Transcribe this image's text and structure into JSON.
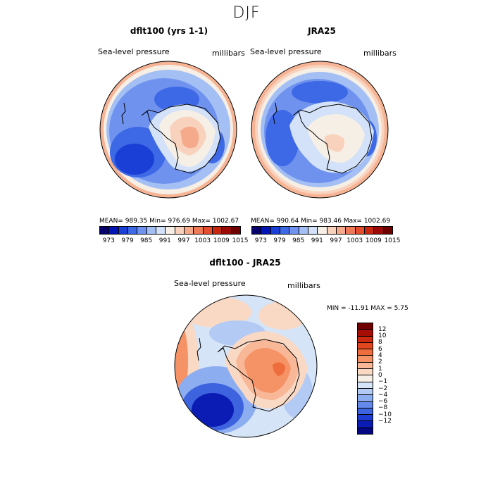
{
  "title": "DJF",
  "panels": [
    {
      "title": "dflt100 (yrs 1-1)",
      "field": "Sea-level pressure",
      "units": "millibars",
      "stats": "MEAN= 989.35   Min= 976.69   Max= 1002.67"
    },
    {
      "title": "JRA25",
      "field": "Sea-level pressure",
      "units": "millibars",
      "stats": "MEAN= 990.64   Min= 983.46   Max= 1002.69"
    },
    {
      "title": "dflt100 - JRA25",
      "field": "Sea-level pressure",
      "units": "millibars",
      "stats": "MIN = -11.91  MAX =   5.75"
    }
  ],
  "abs_colorbar": {
    "colors": [
      "#08006b",
      "#0015b3",
      "#1a3fd6",
      "#3d68e6",
      "#6f92ee",
      "#a4bff4",
      "#d3e2f8",
      "#f6efe6",
      "#f9d2bd",
      "#f5ab8b",
      "#ef7a57",
      "#e44e2c",
      "#c8260f",
      "#9c0a05",
      "#6e0000"
    ],
    "tick_labels": [
      "973",
      "979",
      "985",
      "991",
      "997",
      "1003",
      "1009",
      "1015"
    ]
  },
  "diff_colorbar": {
    "colors": [
      "#6e0000",
      "#a60d04",
      "#cc2a10",
      "#e2461f",
      "#ef6c3c",
      "#f69366",
      "#f8b797",
      "#f9d9c4",
      "#f6efe6",
      "#d6e4f8",
      "#b3cbf4",
      "#8cadf0",
      "#6489ea",
      "#3d63df",
      "#1e3dd0",
      "#0b1cb5",
      "#050780"
    ],
    "tick_labels": [
      "12",
      "10",
      "8",
      "6",
      "4",
      "2",
      "1",
      "0",
      "−1",
      "−2",
      "−4",
      "−6",
      "−8",
      "−10",
      "−12"
    ]
  }
}
